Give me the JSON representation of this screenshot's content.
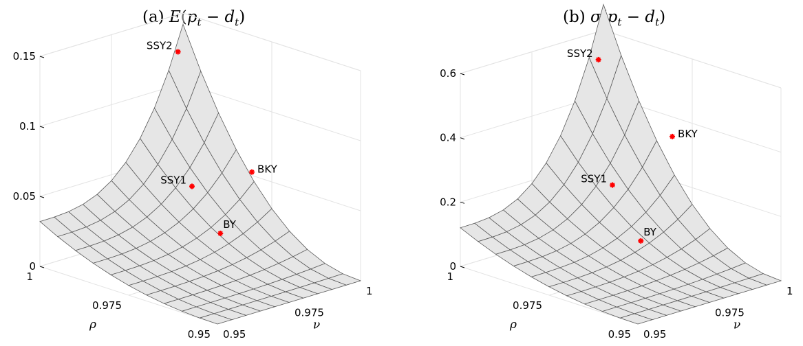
{
  "figure": {
    "panel_a_title": "(a) E(p_t − d_t)",
    "panel_b_title": "(b) σ(p_t − d_t)"
  },
  "colors": {
    "surface": "#e6e6e6",
    "mesh": "#5a5a5a",
    "grid": "#e3e3e3",
    "marker": "#ff0000"
  },
  "chart_data": [
    {
      "type": "surface",
      "title": "(a) E(p_t − d_t)",
      "xlabel": "ν",
      "ylabel": "ρ",
      "zlabel": "",
      "xlim": [
        0.95,
        1
      ],
      "ylim": [
        0.95,
        1
      ],
      "zlim": [
        0,
        0.15
      ],
      "x_ticks": [
        "0.95",
        "0.975",
        "1"
      ],
      "y_ticks": [
        "0.95",
        "0.975",
        "1"
      ],
      "z_ticks": [
        "0",
        "0.05",
        "0.1",
        "0.15"
      ],
      "grid": true,
      "surface_corners": {
        "nu_0.95_rho_0.95": 0.0,
        "nu_1_rho_0.95": 0.0,
        "nu_0.95_rho_1": 0.032,
        "nu_1_rho_1": 0.142
      },
      "points": [
        {
          "label": "SSY2",
          "nu": 0.997,
          "rho": 0.999,
          "value": 0.125
        },
        {
          "label": "BKY",
          "nu": 0.998,
          "rho": 0.979,
          "value": 0.055
        },
        {
          "label": "SSY1",
          "nu": 0.987,
          "rho": 0.987,
          "value": 0.045
        },
        {
          "label": "BY",
          "nu": 0.987,
          "rho": 0.979,
          "value": 0.018
        }
      ]
    },
    {
      "type": "surface",
      "title": "(b) σ(p_t − d_t)",
      "xlabel": "ν",
      "ylabel": "ρ",
      "zlabel": "",
      "xlim": [
        0.95,
        1
      ],
      "ylim": [
        0.95,
        1
      ],
      "zlim": [
        0,
        0.6
      ],
      "x_ticks": [
        "0.95",
        "0.975",
        "1"
      ],
      "y_ticks": [
        "0.95",
        "0.975",
        "1"
      ],
      "z_ticks": [
        "0",
        "0.2",
        "0.4",
        "0.6"
      ],
      "grid": true,
      "surface_corners": {
        "nu_0.95_rho_0.95": 0.0,
        "nu_1_rho_0.95": 0.0,
        "nu_0.95_rho_1": 0.12,
        "nu_1_rho_1": 0.68
      },
      "points": [
        {
          "label": "SSY2",
          "nu": 0.997,
          "rho": 0.999,
          "value": 0.52
        },
        {
          "label": "BKY",
          "nu": 0.998,
          "rho": 0.979,
          "value": 0.35
        },
        {
          "label": "SSY1",
          "nu": 0.987,
          "rho": 0.987,
          "value": 0.2
        },
        {
          "label": "BY",
          "nu": 0.987,
          "rho": 0.979,
          "value": 0.055
        }
      ]
    }
  ]
}
